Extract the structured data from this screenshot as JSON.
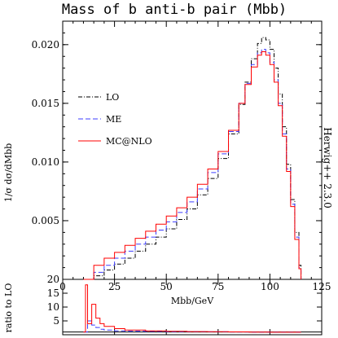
{
  "chart_data": {
    "type": "line",
    "title": "Mass of b anti-b pair (Mbb)",
    "xlabel": "Mbb/GeV",
    "ylabel": "1/σ dσ/dMbb",
    "side_label": "Herwig++ 2.3.0",
    "xlim": [
      0,
      125
    ],
    "ylim": [
      0,
      0.022
    ],
    "x_ticks": [
      0,
      25,
      50,
      75,
      100,
      125
    ],
    "x_tick_labels": [
      "0",
      "25",
      "50",
      "75",
      "100",
      "125"
    ],
    "y_ticks": [
      0.005,
      0.01,
      0.015,
      0.02
    ],
    "y_tick_labels": [
      "0.005",
      "0.010",
      "0.015",
      "0.020"
    ],
    "legend_position": "left",
    "series": [
      {
        "name": "LO",
        "color": "#000000",
        "style": "dashdot",
        "x": [
          10,
          15,
          20,
          25,
          30,
          35,
          40,
          45,
          50,
          55,
          60,
          65,
          70,
          75,
          80,
          85,
          88,
          91,
          94,
          96,
          98,
          100,
          102,
          104,
          106,
          108,
          110,
          112,
          114,
          115
        ],
        "y": [
          0.0,
          0.0003,
          0.0008,
          0.0013,
          0.0018,
          0.0024,
          0.003,
          0.0036,
          0.0043,
          0.0051,
          0.006,
          0.0072,
          0.0086,
          0.0103,
          0.0124,
          0.0149,
          0.0168,
          0.0188,
          0.0201,
          0.0206,
          0.0204,
          0.0196,
          0.018,
          0.0158,
          0.013,
          0.0098,
          0.0068,
          0.004,
          0.0012,
          0.0
        ]
      },
      {
        "name": "ME",
        "color": "#3d3dff",
        "style": "dashed",
        "x": [
          10,
          15,
          20,
          25,
          30,
          35,
          40,
          45,
          50,
          55,
          60,
          65,
          70,
          75,
          80,
          85,
          88,
          91,
          94,
          96,
          98,
          100,
          102,
          104,
          106,
          108,
          110,
          112,
          114,
          115
        ],
        "y": [
          0.0,
          0.0006,
          0.0012,
          0.0018,
          0.0024,
          0.003,
          0.0036,
          0.0042,
          0.0049,
          0.0057,
          0.0066,
          0.0077,
          0.0091,
          0.0107,
          0.0126,
          0.015,
          0.0167,
          0.0183,
          0.0193,
          0.0196,
          0.0193,
          0.0185,
          0.017,
          0.015,
          0.0124,
          0.0094,
          0.0064,
          0.0036,
          0.001,
          0.0
        ]
      },
      {
        "name": "MC@NLO",
        "color": "#ff0000",
        "style": "solid",
        "x": [
          10,
          15,
          20,
          25,
          30,
          35,
          40,
          45,
          50,
          55,
          60,
          65,
          70,
          75,
          80,
          85,
          88,
          91,
          94,
          96,
          98,
          100,
          102,
          104,
          106,
          108,
          110,
          112,
          114,
          115
        ],
        "y": [
          0.0,
          0.0012,
          0.0018,
          0.0023,
          0.0029,
          0.0035,
          0.0041,
          0.0047,
          0.0054,
          0.0061,
          0.007,
          0.0081,
          0.0094,
          0.0109,
          0.0127,
          0.015,
          0.0166,
          0.0181,
          0.0191,
          0.0194,
          0.0191,
          0.0183,
          0.0168,
          0.0148,
          0.0122,
          0.0092,
          0.0062,
          0.0034,
          0.0009,
          0.0
        ]
      }
    ],
    "ratio_panel": {
      "ylabel": "ratio to LO",
      "ylim": [
        0,
        20
      ],
      "y_ticks": [
        5,
        10,
        15,
        20
      ],
      "y_tick_labels": [
        "5",
        "10",
        "15",
        "20"
      ],
      "series": [
        {
          "name": "ME",
          "color": "#3d3dff",
          "style": "dashed",
          "x": [
            10,
            12,
            14,
            16,
            18,
            20,
            25,
            30,
            40,
            50,
            60,
            70,
            80,
            90,
            100,
            110,
            115
          ],
          "y": [
            1.0,
            5.0,
            3.5,
            2.6,
            2.0,
            1.7,
            1.4,
            1.3,
            1.2,
            1.1,
            1.1,
            1.05,
            1.0,
            0.97,
            0.95,
            0.95,
            0.95
          ]
        },
        {
          "name": "MC@NLO",
          "color": "#ff0000",
          "style": "solid",
          "x": [
            10,
            11,
            12,
            14,
            16,
            18,
            20,
            25,
            30,
            40,
            50,
            60,
            70,
            80,
            90,
            100,
            110,
            115
          ],
          "y": [
            1.0,
            18.0,
            4.0,
            11.0,
            6.0,
            4.0,
            3.0,
            2.2,
            1.7,
            1.4,
            1.25,
            1.15,
            1.1,
            1.02,
            0.97,
            0.93,
            0.92,
            0.92
          ]
        }
      ]
    }
  }
}
